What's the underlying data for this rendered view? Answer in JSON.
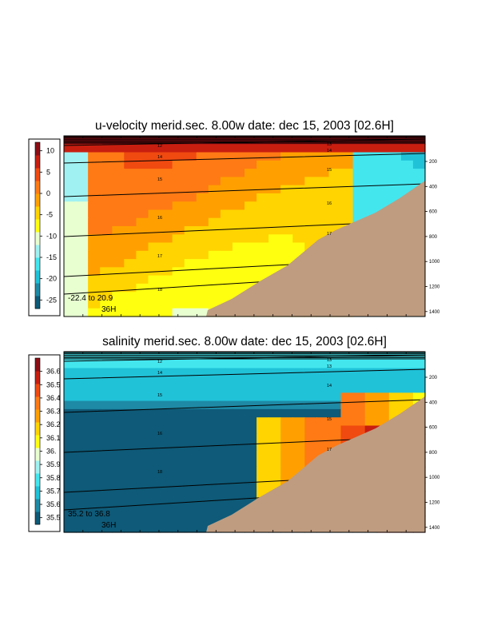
{
  "chart_data": [
    {
      "type": "heatmap",
      "title": "u-velocity merid.sec.  8.00w   date: dec 15, 2003   [02.6H]",
      "colorbar": {
        "ticks": [
          "10",
          "5",
          "0",
          "-5",
          "-10",
          "-15",
          "-20",
          "-25"
        ],
        "range": [
          -27,
          12
        ],
        "colors": [
          "#0e5a78",
          "#1e8aa6",
          "#20c2d8",
          "#44e6ee",
          "#a0f2f2",
          "#e8ffd0",
          "#ffff10",
          "#ffd400",
          "#ffa000",
          "#ff7a14",
          "#f04a10",
          "#c81e10",
          "#8c0e14"
        ]
      },
      "range_label": "-22.4 to  20.9",
      "layer_label": "36H",
      "depth_ticks": [
        "200",
        "400",
        "600",
        "800",
        "1000",
        "1200",
        "1400"
      ],
      "isopycnal_labels": [
        "12",
        "13",
        "14",
        "14",
        "15",
        "15",
        "16",
        "16",
        "17",
        "17",
        "18"
      ],
      "colors": {
        "seabed": "#bf9c80"
      }
    },
    {
      "type": "heatmap",
      "title": "salinity merid.sec.  8.00w   date: dec 15, 2003   [02.6H]",
      "colorbar": {
        "ticks": [
          "36.6",
          "36.5",
          "36.4",
          "36.3",
          "36.2",
          "36.1",
          "36.",
          "35.9",
          "35.8",
          "35.7",
          "35.6",
          "35.5"
        ],
        "range": [
          35.45,
          36.7
        ],
        "colors": [
          "#0e5a78",
          "#1e8aa6",
          "#20c2d8",
          "#44e6ee",
          "#a0f2f2",
          "#e8ffd0",
          "#ffff10",
          "#ffd400",
          "#ffa000",
          "#ff7a14",
          "#f04a10",
          "#c81e10",
          "#8c0e14"
        ]
      },
      "range_label": "35.2 to  36.8",
      "layer_label": "36H",
      "depth_ticks": [
        "200",
        "400",
        "600",
        "800",
        "1000",
        "1200",
        "1400"
      ],
      "isopycnal_labels": [
        "12",
        "13",
        "13",
        "14",
        "14",
        "15",
        "15",
        "16",
        "17",
        "18"
      ],
      "colors": {
        "seabed": "#bf9c80"
      }
    }
  ]
}
